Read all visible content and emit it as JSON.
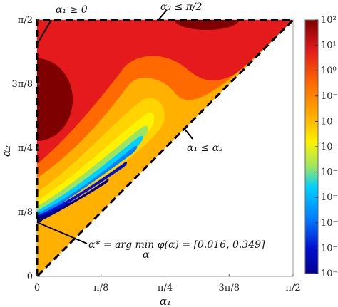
{
  "chart_data": {
    "type": "heatmap",
    "title": "",
    "xlabel": "α₁",
    "ylabel": "α₂",
    "xlim": [
      0,
      1.5708
    ],
    "ylim": [
      0,
      1.5708
    ],
    "x_ticks": [
      "0",
      "π/8",
      "π/4",
      "3π/8",
      "π/2"
    ],
    "y_ticks": [
      "0",
      "π/8",
      "π/4",
      "3π/8",
      "π/2"
    ],
    "tick_values": [
      0,
      0.3927,
      0.7854,
      1.1781,
      1.5708
    ],
    "colorbar": {
      "scale": "log",
      "range": [
        1e-08,
        100
      ],
      "tick_labels": [
        "10²",
        "10¹",
        "10⁰",
        "10⁻¹",
        "10⁻²",
        "10⁻³",
        "10⁻⁴",
        "10⁻⁵",
        "10⁻⁶",
        "10⁻⁷",
        "10⁻⁸"
      ],
      "tick_values": [
        100,
        10,
        1,
        0.1,
        0.01,
        0.001,
        0.0001,
        1e-05,
        1e-06,
        1e-07,
        1e-08
      ]
    },
    "domain": "region α₁ ≥ 0, α₂ ≤ π/2, α₁ ≤ α₂ (triangle)",
    "minimum": {
      "x": 0.016,
      "y": 0.349
    },
    "annotations": [
      {
        "text": "α₁ ≥ 0",
        "target": "left boundary"
      },
      {
        "text": "α₂ ≤ π/2",
        "target": "top boundary"
      },
      {
        "text": "α₁ ≤ α₂",
        "target": "diagonal boundary"
      },
      {
        "text": "α* = arg min φ(α) = [0.016, 0.349]",
        "sub": "α",
        "target": "minimum point"
      }
    ],
    "grid": false
  }
}
